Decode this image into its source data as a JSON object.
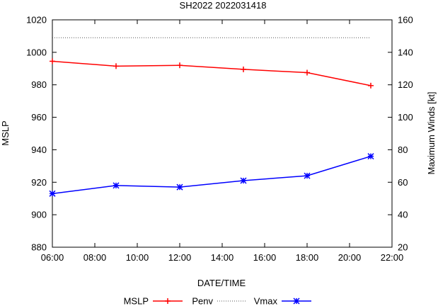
{
  "chart_data": {
    "type": "line",
    "title": "SH2022 2022031418",
    "xlabel": "DATE/TIME",
    "ylabel_left": "MSLP",
    "ylabel_right": "Maximum Winds [kt]",
    "x_hours": [
      6,
      9,
      12,
      15,
      18,
      21
    ],
    "x_tick_labels": [
      "06:00",
      "08:00",
      "10:00",
      "12:00",
      "14:00",
      "16:00",
      "18:00",
      "20:00",
      "22:00"
    ],
    "x_tick_hours": [
      6,
      8,
      10,
      12,
      14,
      16,
      18,
      20,
      22
    ],
    "xlim": [
      6,
      22
    ],
    "ylim_left": [
      880,
      1020
    ],
    "y_left_ticks": [
      880,
      900,
      920,
      940,
      960,
      980,
      1000,
      1020
    ],
    "ylim_right": [
      20,
      160
    ],
    "y_right_ticks": [
      20,
      40,
      60,
      80,
      100,
      120,
      140,
      160
    ],
    "series": [
      {
        "name": "MSLP",
        "axis": "left",
        "color": "#ff0000",
        "marker": "plus",
        "style": "solid",
        "values": [
          994.5,
          991.5,
          992,
          989.5,
          987.5,
          979.5
        ]
      },
      {
        "name": "Penv",
        "axis": "left",
        "color": "#555555",
        "marker": "none",
        "style": "dotted",
        "values": [
          1009,
          1009,
          1009,
          1009,
          1009,
          1009
        ]
      },
      {
        "name": "Vmax",
        "axis": "right",
        "color": "#0000ff",
        "marker": "star",
        "style": "solid",
        "values": [
          53,
          58,
          57,
          61,
          64,
          76
        ]
      }
    ],
    "legend": {
      "placement": "bottom",
      "labels": [
        "MSLP",
        "Penv",
        "Vmax"
      ]
    }
  }
}
